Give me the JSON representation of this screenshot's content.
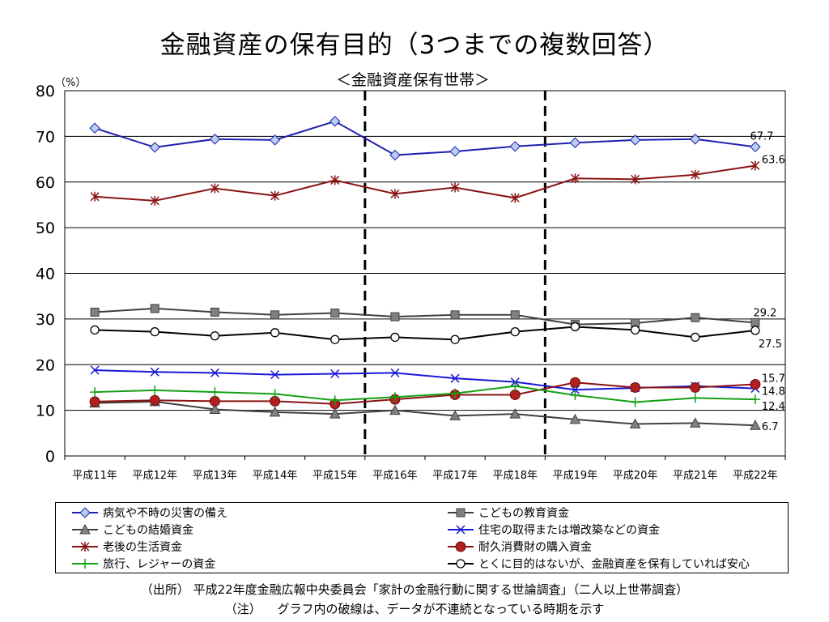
{
  "header": {
    "title": "金融資産の保有目的（3つまでの複数回答）",
    "subtitle": "＜金融資産保有世帯＞"
  },
  "footer": {
    "source": "（出所） 平成22年度金融広報中央委員会「家計の金融行動に関する世論調査」（二人以上世帯調査）",
    "note": "（注） 　グラフ内の破線は、データが不連続となっている時期を示す"
  },
  "chart_data": {
    "type": "line",
    "unit_label": "（%）",
    "categories": [
      "平成11年",
      "平成12年",
      "平成13年",
      "平成14年",
      "平成15年",
      "平成16年",
      "平成17年",
      "平成18年",
      "平成19年",
      "平成20年",
      "平成21年",
      "平成22年"
    ],
    "ylim": [
      0,
      80
    ],
    "yticks": [
      0,
      10,
      20,
      30,
      40,
      50,
      60,
      70,
      80
    ],
    "grid": true,
    "discontinuity_lines_after": [
      "平成15年",
      "平成18年"
    ],
    "legend_placement": "bottom",
    "series": [
      {
        "name": "病気や不時の災害の備え",
        "color": "#1f1fb0",
        "marker": "diamond",
        "values": [
          71.8,
          67.6,
          69.4,
          69.2,
          73.3,
          65.9,
          66.7,
          67.8,
          68.6,
          69.2,
          69.4,
          67.7
        ],
        "end_label": "67.7"
      },
      {
        "name": "こどもの教育資金",
        "color": "#404040",
        "marker": "square",
        "values": [
          31.5,
          32.3,
          31.5,
          30.9,
          31.3,
          30.5,
          30.9,
          30.9,
          28.8,
          29.1,
          30.3,
          29.2
        ],
        "end_label": "29.2"
      },
      {
        "name": "こどもの結婚資金",
        "color": "#404040",
        "marker": "triangle",
        "values": [
          11.6,
          11.9,
          10.2,
          9.6,
          9.2,
          10.0,
          8.8,
          9.2,
          8.0,
          7.0,
          7.2,
          6.7
        ],
        "end_label": "6.7"
      },
      {
        "name": "住宅の取得または増改築などの資金",
        "color": "#1818d8",
        "marker": "x",
        "values": [
          18.8,
          18.4,
          18.2,
          17.8,
          18.0,
          18.2,
          17.0,
          16.2,
          14.5,
          14.9,
          15.3,
          14.8
        ],
        "end_label": "14.8"
      },
      {
        "name": "老後の生活資金",
        "color": "#8a1414",
        "marker": "asterisk",
        "values": [
          56.8,
          55.9,
          58.6,
          57.0,
          60.4,
          57.4,
          58.8,
          56.5,
          60.8,
          60.6,
          61.6,
          63.6
        ],
        "end_label": "63.6"
      },
      {
        "name": "耐久消費財の購入資金",
        "color": "#8a1414",
        "marker": "dot",
        "values": [
          11.9,
          12.2,
          12.0,
          12.0,
          11.4,
          12.4,
          13.4,
          13.4,
          16.1,
          15.0,
          15.0,
          15.7
        ],
        "end_label": "15.7"
      },
      {
        "name": "旅行、レジャーの資金",
        "color": "#14a014",
        "marker": "plus",
        "values": [
          14.0,
          14.4,
          14.0,
          13.6,
          12.2,
          12.9,
          13.7,
          15.3,
          13.3,
          11.8,
          12.7,
          12.4
        ],
        "end_label": "12.4"
      },
      {
        "name": "とくに目的はないが、金融資産を保有していれば安心",
        "color": "#000000",
        "marker": "circle",
        "values": [
          27.6,
          27.2,
          26.3,
          27.0,
          25.5,
          26.0,
          25.5,
          27.2,
          28.3,
          27.6,
          26.0,
          27.5
        ],
        "end_label": "27.5"
      }
    ]
  }
}
